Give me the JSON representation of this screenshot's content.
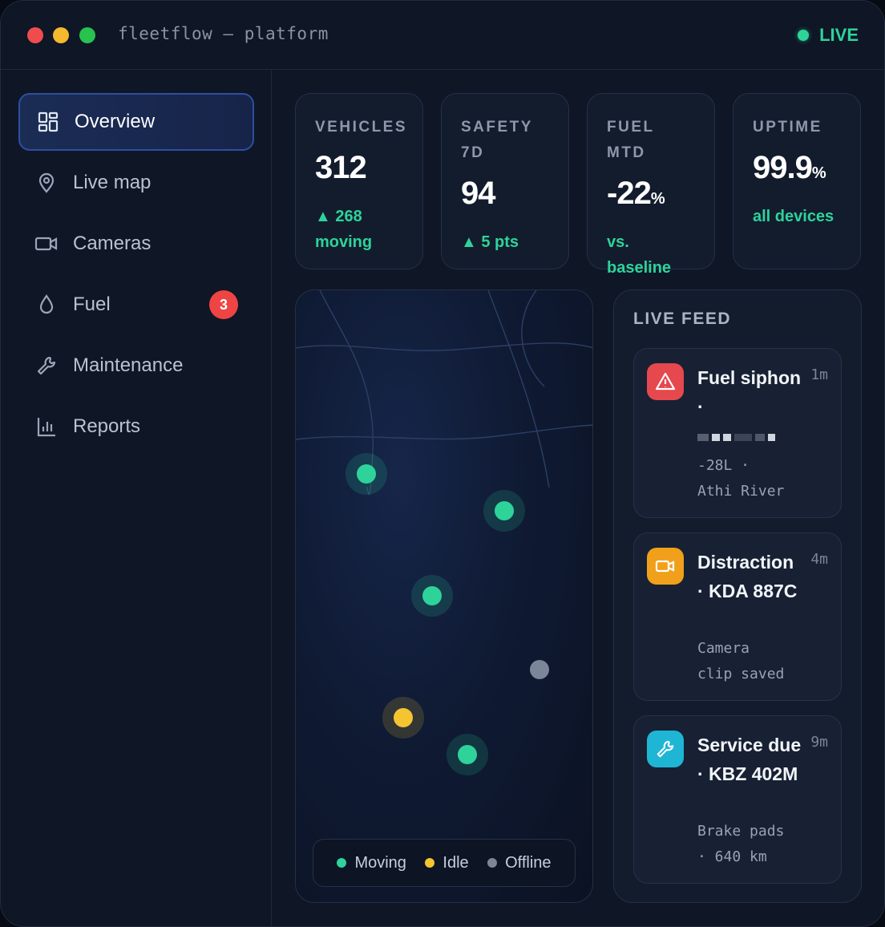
{
  "window": {
    "title": "fleetflow — platform",
    "status": "LIVE",
    "status_color": "#2ed39a"
  },
  "sidebar": {
    "items": [
      {
        "label": "Overview",
        "icon": "dashboard-grid-icon",
        "active": true
      },
      {
        "label": "Live map",
        "icon": "map-pin-icon"
      },
      {
        "label": "Cameras",
        "icon": "video-camera-icon"
      },
      {
        "label": "Fuel",
        "icon": "fuel-drop-icon",
        "badge": "3"
      },
      {
        "label": "Maintenance",
        "icon": "wrench-icon"
      },
      {
        "label": "Reports",
        "icon": "bar-chart-icon"
      }
    ]
  },
  "kpis": [
    {
      "label": "VEHICLES",
      "value": "312",
      "unit": "",
      "sub": "▲ 268 moving"
    },
    {
      "label": "SAFETY 7D",
      "value": "94",
      "unit": "",
      "sub": "▲ 5 pts"
    },
    {
      "label": "FUEL MTD",
      "value": "-22",
      "unit": "%",
      "sub": "vs. baseline"
    },
    {
      "label": "UPTIME",
      "value": "99.9",
      "unit": "%",
      "sub": "all devices"
    }
  ],
  "map": {
    "legend": [
      {
        "label": "Moving",
        "color": "#2ed39a"
      },
      {
        "label": "Idle",
        "color": "#f5c431"
      },
      {
        "label": "Offline",
        "color": "#7c8698"
      }
    ],
    "vehicle_status": [
      "moving",
      "moving",
      "moving",
      "offline",
      "idle",
      "moving"
    ]
  },
  "feed": {
    "title": "LIVE FEED",
    "events": [
      {
        "title": "Fuel siphon ·",
        "time": "1m",
        "detail_1": "-28L ·",
        "detail_2": "Athi River",
        "icon": "warning-triangle-icon",
        "color": "#e5484d"
      },
      {
        "title": "Distraction · KDA 887C",
        "time": "4m",
        "detail_1": "Camera",
        "detail_2": "clip saved",
        "icon": "video-camera-icon",
        "color": "#f0a01a"
      },
      {
        "title": "Service due · KBZ 402M",
        "time": "9m",
        "detail_1": "Brake pads",
        "detail_2": "· 640 km",
        "icon": "wrench-icon",
        "color": "#1fb6d6"
      }
    ]
  }
}
